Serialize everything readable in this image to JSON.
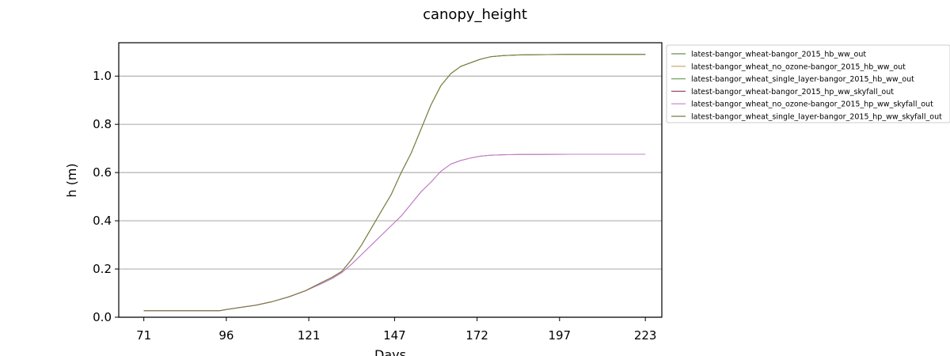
{
  "chart_data": {
    "type": "line",
    "title": "canopy_height",
    "xlabel": "Days",
    "ylabel": "h (m)",
    "xlim": [
      63.4,
      228
    ],
    "ylim": [
      0,
      1.1385
    ],
    "x_ticks": [
      71,
      96,
      121,
      147,
      172,
      197,
      223
    ],
    "y_ticks": [
      0.0,
      0.2,
      0.4,
      0.6,
      0.8,
      1.0
    ],
    "y_tick_labels": [
      "0.0",
      "0.2",
      "0.4",
      "0.6",
      "0.8",
      "1.0"
    ],
    "grid": "horizontal",
    "legend_position": "outside-right",
    "x": [
      71,
      80,
      90,
      94,
      96,
      100,
      105,
      110,
      115,
      120,
      125,
      128,
      131,
      134,
      137,
      140,
      143,
      146,
      149,
      152,
      155,
      158,
      161,
      164,
      167,
      170,
      173,
      176,
      180,
      185,
      190,
      200,
      210,
      223
    ],
    "series": [
      {
        "name": "latest-bangor_wheat-bangor_2015_hb_ww_out",
        "color": "#6f8a5e",
        "values": [
          0.027,
          0.027,
          0.027,
          0.027,
          0.032,
          0.04,
          0.05,
          0.065,
          0.085,
          0.11,
          0.145,
          0.165,
          0.19,
          0.24,
          0.3,
          0.37,
          0.44,
          0.51,
          0.6,
          0.68,
          0.78,
          0.88,
          0.96,
          1.01,
          1.04,
          1.055,
          1.07,
          1.08,
          1.085,
          1.088,
          1.089,
          1.09,
          1.09,
          1.09
        ]
      },
      {
        "name": "latest-bangor_wheat_no_ozone-bangor_2015_hb_ww_out",
        "color": "#bfa46a",
        "values": [
          0.027,
          0.027,
          0.027,
          0.027,
          0.032,
          0.04,
          0.05,
          0.065,
          0.085,
          0.11,
          0.145,
          0.165,
          0.19,
          0.24,
          0.3,
          0.37,
          0.44,
          0.51,
          0.6,
          0.68,
          0.78,
          0.88,
          0.96,
          1.01,
          1.04,
          1.055,
          1.07,
          1.08,
          1.085,
          1.088,
          1.089,
          1.09,
          1.09,
          1.09
        ]
      },
      {
        "name": "latest-bangor_wheat_single_layer-bangor_2015_hb_ww_out",
        "color": "#77a35c",
        "values": [
          0.027,
          0.027,
          0.027,
          0.027,
          0.032,
          0.04,
          0.05,
          0.065,
          0.085,
          0.11,
          0.145,
          0.165,
          0.19,
          0.24,
          0.3,
          0.37,
          0.44,
          0.51,
          0.6,
          0.68,
          0.78,
          0.88,
          0.96,
          1.01,
          1.04,
          1.055,
          1.07,
          1.08,
          1.085,
          1.088,
          1.089,
          1.09,
          1.09,
          1.09
        ]
      },
      {
        "name": "latest-bangor_wheat-bangor_2015_hp_ww_skyfall_out",
        "color": "#9a4f6e",
        "values": [
          0.027,
          0.027,
          0.027,
          0.027,
          0.032,
          0.04,
          0.05,
          0.065,
          0.085,
          0.11,
          0.14,
          0.16,
          0.185,
          0.22,
          0.26,
          0.3,
          0.34,
          0.38,
          0.42,
          0.47,
          0.52,
          0.56,
          0.605,
          0.635,
          0.65,
          0.66,
          0.668,
          0.672,
          0.674,
          0.675,
          0.675,
          0.676,
          0.676,
          0.676
        ]
      },
      {
        "name": "latest-bangor_wheat_no_ozone-bangor_2015_hp_ww_skyfall_out",
        "color": "#c47fd0",
        "values": [
          0.027,
          0.027,
          0.027,
          0.027,
          0.032,
          0.04,
          0.05,
          0.065,
          0.085,
          0.11,
          0.14,
          0.16,
          0.185,
          0.22,
          0.26,
          0.3,
          0.34,
          0.38,
          0.42,
          0.47,
          0.52,
          0.56,
          0.605,
          0.635,
          0.65,
          0.66,
          0.668,
          0.672,
          0.674,
          0.675,
          0.675,
          0.676,
          0.676,
          0.676
        ]
      },
      {
        "name": "latest-bangor_wheat_single_layer-bangor_2015_hp_ww_skyfall_out",
        "color": "#7c7a40",
        "values": [
          0.027,
          0.027,
          0.027,
          0.027,
          0.032,
          0.04,
          0.05,
          0.065,
          0.085,
          0.11,
          0.145,
          0.165,
          0.19,
          0.24,
          0.3,
          0.37,
          0.44,
          0.51,
          0.6,
          0.68,
          0.78,
          0.88,
          0.96,
          1.01,
          1.04,
          1.055,
          1.07,
          1.08,
          1.085,
          1.088,
          1.089,
          1.09,
          1.09,
          1.09
        ]
      }
    ]
  }
}
